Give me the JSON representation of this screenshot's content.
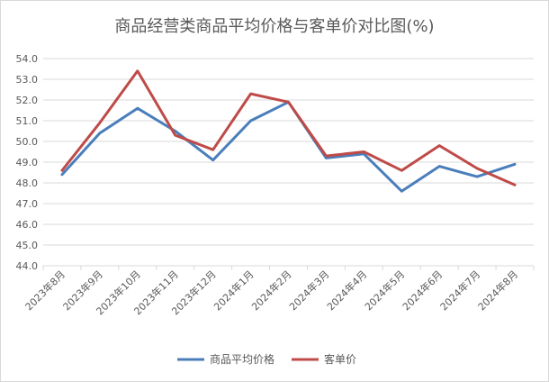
{
  "chart_data": {
    "type": "line",
    "title": "商品经营类商品平均价格与客单价对比图(%)",
    "categories": [
      "2023年8月",
      "2023年9月",
      "2023年10月",
      "2023年11月",
      "2023年12月",
      "2024年1月",
      "2024年2月",
      "2024年3月",
      "2024年4月",
      "2024年5月",
      "2024年6月",
      "2024年7月",
      "2024年8月"
    ],
    "y_ticks": [
      "44.0",
      "45.0",
      "46.0",
      "47.0",
      "48.0",
      "49.0",
      "50.0",
      "51.0",
      "52.0",
      "53.0",
      "54.0"
    ],
    "ylim": [
      44,
      54
    ],
    "grid": true,
    "legend_position": "bottom",
    "series": [
      {
        "name": "商品平均价格",
        "color": "#4a7ebb",
        "values": [
          48.4,
          50.4,
          51.6,
          50.5,
          49.1,
          51.0,
          51.9,
          49.2,
          49.4,
          47.6,
          48.8,
          48.3,
          48.9
        ]
      },
      {
        "name": "客单价",
        "color": "#be4b48",
        "values": [
          48.6,
          50.9,
          53.4,
          50.3,
          49.6,
          52.3,
          51.9,
          49.3,
          49.5,
          48.6,
          49.8,
          48.7,
          47.9
        ]
      }
    ]
  }
}
